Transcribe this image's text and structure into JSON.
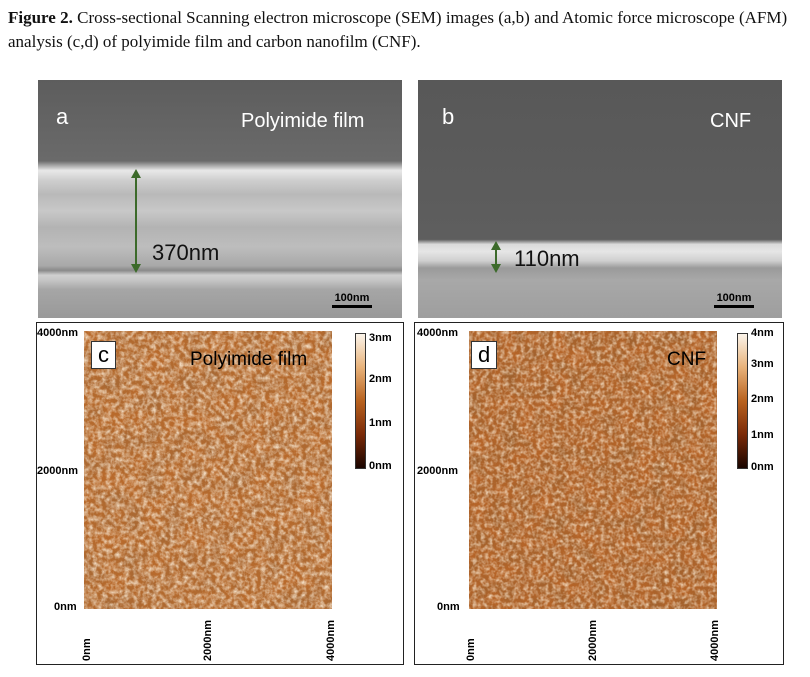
{
  "caption": {
    "label": "Figure 2.",
    "text": "Cross-sectional Scanning electron microscope (SEM) images (a,b) and Atomic force microscope (AFM) analysis (c,d) of polyimide film and carbon nanofilm (CNF)."
  },
  "panels": {
    "a": {
      "letter": "a",
      "title": "Polyimide film",
      "measure": "370nm",
      "scalebar": "100nm"
    },
    "b": {
      "letter": "b",
      "title": "CNF",
      "measure": "110nm",
      "scalebar": "100nm"
    },
    "c": {
      "letter": "c",
      "title": "Polyimide film",
      "y_top": "4000nm",
      "y_mid": "2000nm",
      "y_bot": "0nm",
      "x_0": "0nm",
      "x_mid": "2000nm",
      "x_max": "4000nm",
      "colorbar": [
        "3nm",
        "2nm",
        "1nm",
        "0nm"
      ]
    },
    "d": {
      "letter": "d",
      "title": "CNF",
      "y_top": "4000nm",
      "y_mid": "2000nm",
      "y_bot": "0nm",
      "x_0": "0nm",
      "x_mid": "2000nm",
      "x_max": "4000nm",
      "colorbar": [
        "4nm",
        "3nm",
        "2nm",
        "1nm",
        "0nm"
      ]
    }
  },
  "colors": {
    "sem_dark": "#5b5b5b",
    "afm_mid": "#b86a2c",
    "afm_dark": "#5a250a",
    "afm_light": "#f4dcc0"
  }
}
